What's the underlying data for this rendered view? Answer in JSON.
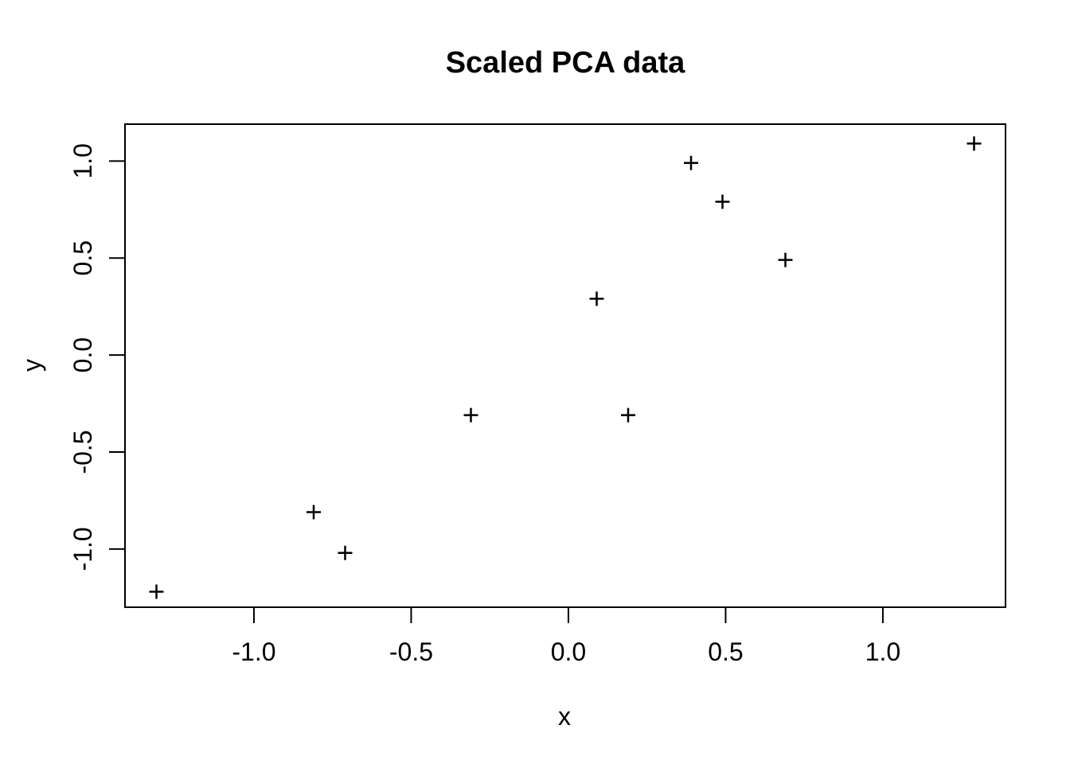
{
  "window": {
    "background": "#ffffff",
    "foreground": "#000000"
  },
  "chart_data": {
    "type": "scatter",
    "title": "Scaled PCA data",
    "xlabel": "x",
    "ylabel": "y",
    "xlim": [
      -1.41,
      1.39
    ],
    "ylim": [
      -1.3,
      1.19
    ],
    "x_ticks": [
      -1.0,
      -0.5,
      0.0,
      0.5,
      1.0
    ],
    "x_tick_labels": [
      "-1.0",
      "-0.5",
      "0.0",
      "0.5",
      "1.0"
    ],
    "y_ticks": [
      -1.0,
      -0.5,
      0.0,
      0.5,
      1.0
    ],
    "y_tick_labels": [
      "-1.0",
      "-0.5",
      "0.0",
      "0.5",
      "1.0"
    ],
    "grid": false,
    "legend": false,
    "marker": "plus",
    "marker_color": "#000000",
    "box_color": "#000000",
    "points": [
      {
        "x": -1.31,
        "y": -1.22
      },
      {
        "x": -0.81,
        "y": -0.81
      },
      {
        "x": -0.71,
        "y": -1.02
      },
      {
        "x": -0.31,
        "y": -0.31
      },
      {
        "x": 0.09,
        "y": 0.29
      },
      {
        "x": 0.19,
        "y": -0.31
      },
      {
        "x": 0.39,
        "y": 0.99
      },
      {
        "x": 0.49,
        "y": 0.79
      },
      {
        "x": 0.69,
        "y": 0.49
      },
      {
        "x": 1.29,
        "y": 1.09
      }
    ]
  }
}
